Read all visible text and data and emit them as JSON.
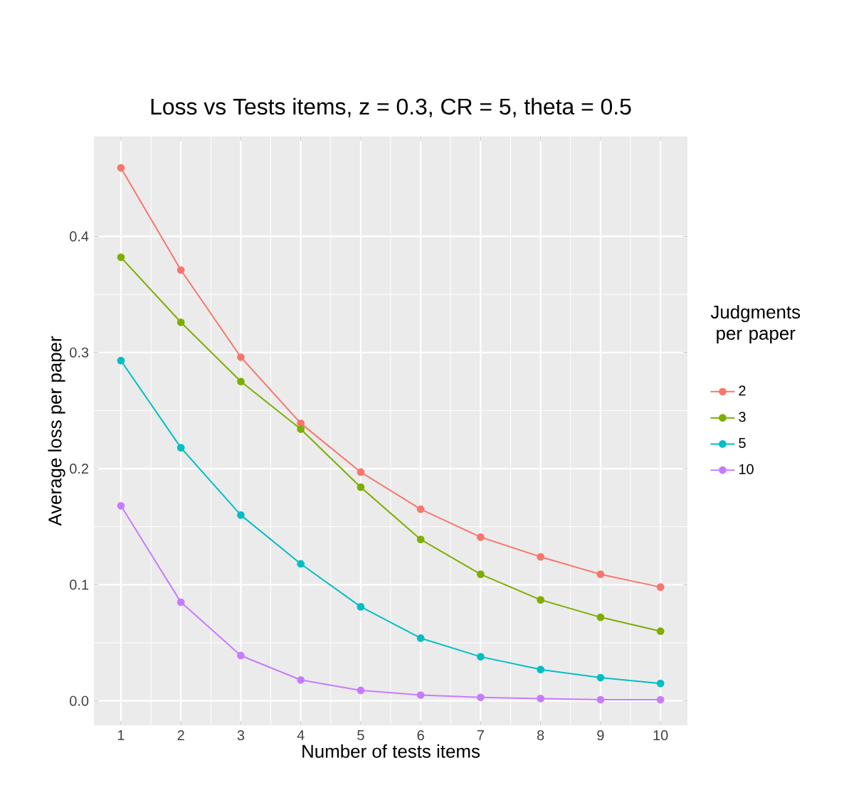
{
  "chart_data": {
    "type": "line",
    "title": "Loss vs Tests items, z = 0.3, CR = 5, theta = 0.5",
    "xlabel": "Number of tests items",
    "ylabel": "Average loss per paper",
    "legend_title": "Judgments per paper",
    "x": [
      1,
      2,
      3,
      4,
      5,
      6,
      7,
      8,
      9,
      10
    ],
    "series": [
      {
        "name": "2",
        "color": "#f8766d",
        "values": [
          0.459,
          0.371,
          0.296,
          0.239,
          0.197,
          0.165,
          0.141,
          0.124,
          0.109,
          0.098
        ]
      },
      {
        "name": "3",
        "color": "#7cae00",
        "values": [
          0.382,
          0.326,
          0.275,
          0.234,
          0.184,
          0.139,
          0.109,
          0.087,
          0.072,
          0.06
        ]
      },
      {
        "name": "5",
        "color": "#00bfc4",
        "values": [
          0.293,
          0.218,
          0.16,
          0.118,
          0.081,
          0.054,
          0.038,
          0.027,
          0.02,
          0.015
        ]
      },
      {
        "name": "10",
        "color": "#c77cff",
        "values": [
          0.168,
          0.085,
          0.039,
          0.018,
          0.009,
          0.005,
          0.003,
          0.002,
          0.001,
          0.001
        ]
      }
    ],
    "xlim": [
      0.55,
      10.45
    ],
    "ylim": [
      -0.021,
      0.486
    ],
    "xticks": [
      1,
      2,
      3,
      4,
      5,
      6,
      7,
      8,
      9,
      10
    ],
    "yticks": [
      {
        "value": 0,
        "label": "0.0"
      },
      {
        "value": 0.1,
        "label": "0.1"
      },
      {
        "value": 0.2,
        "label": "0.2"
      },
      {
        "value": 0.3,
        "label": "0.3"
      },
      {
        "value": 0.4,
        "label": "0.4"
      }
    ],
    "grid": true,
    "legend": "right",
    "marker": "circle",
    "line_style": "solid"
  }
}
